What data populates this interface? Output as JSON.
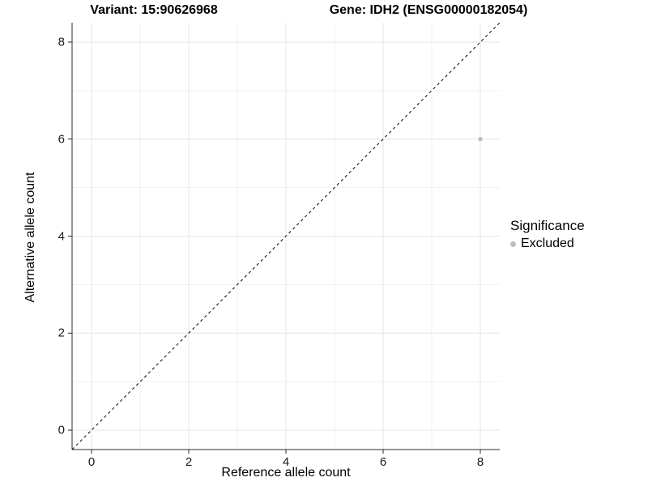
{
  "chart_data": {
    "type": "scatter",
    "title_left": "Variant: 15:90626968",
    "title_right": "Gene: IDH2 (ENSG00000182054)",
    "xlabel": "Reference allele count",
    "ylabel": "Alternative allele count",
    "xlim": [
      -0.4,
      8.4
    ],
    "ylim": [
      -0.4,
      8.4
    ],
    "x_ticks": [
      0,
      2,
      4,
      6,
      8
    ],
    "y_ticks": [
      0,
      2,
      4,
      6,
      8
    ],
    "x_minor_ticks": [
      1,
      3,
      5,
      7
    ],
    "y_minor_ticks": [
      1,
      3,
      5,
      7
    ],
    "grid": true,
    "identity_line": {
      "style": "dashed",
      "from": [
        -0.4,
        -0.4
      ],
      "to": [
        8.4,
        8.4
      ]
    },
    "points": [
      {
        "x": 8,
        "y": 6,
        "significance": "Excluded"
      }
    ],
    "legend": {
      "position": "right",
      "title": "Significance",
      "items": [
        {
          "label": "Excluded",
          "color": "#bdbdbd"
        }
      ]
    },
    "colors": {
      "point": "#bdbdbd",
      "grid_major": "#e4e4e4",
      "grid_minor": "#f1f1f1",
      "axis": "#2b2b2b",
      "identity_line": "#000000",
      "background": "#ffffff"
    }
  }
}
